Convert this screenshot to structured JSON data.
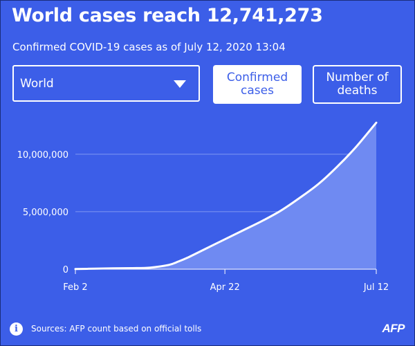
{
  "header": {
    "title": "World cases reach 12,741,273",
    "subtitle": "Confirmed COVID-19 cases as of July 12, 2020 13:04"
  },
  "controls": {
    "region": "World",
    "toggle_confirmed": [
      "Confirmed",
      "cases"
    ],
    "toggle_deaths": [
      "Number of",
      "deaths"
    ]
  },
  "chart_data": {
    "type": "area",
    "title": "",
    "xlabel": "",
    "ylabel": "",
    "x_ticks": [
      "Feb 2",
      "Apr 22",
      "Jul 12"
    ],
    "y_ticks": [
      {
        "value": 0,
        "label": "0"
      },
      {
        "value": 5000000,
        "label": "5,000,000"
      },
      {
        "value": 10000000,
        "label": "10,000,000"
      }
    ],
    "ylim": [
      0,
      13000000
    ],
    "grid": true,
    "series": [
      {
        "points": [
          [
            "Feb 2",
            14500
          ],
          [
            "Feb 12",
            44000
          ],
          [
            "Feb 22",
            77000
          ],
          [
            "Mar 3",
            92000
          ],
          [
            "Mar 13",
            140000
          ],
          [
            "Mar 23",
            375000
          ],
          [
            "Mar 28",
            660000
          ],
          [
            "Apr 2",
            1000000
          ],
          [
            "Apr 12",
            1800000
          ],
          [
            "Apr 22",
            2600000
          ],
          [
            "May 2",
            3400000
          ],
          [
            "May 12",
            4200000
          ],
          [
            "May 22",
            5100000
          ],
          [
            "Jun 1",
            6200000
          ],
          [
            "Jun 11",
            7400000
          ],
          [
            "Jun 21",
            8900000
          ],
          [
            "Jul 1",
            10600000
          ],
          [
            "Jul 12",
            12741273
          ]
        ]
      }
    ]
  },
  "footer": {
    "sources": "Sources: AFP count based on official tolls",
    "info_icon": "info-icon",
    "logo": "AFP"
  },
  "colors": {
    "background": "#3c5ee8",
    "area_fill": "#6f8af2",
    "line": "#ffffff",
    "grid": "#7f97f2",
    "text": "#ffffff"
  }
}
